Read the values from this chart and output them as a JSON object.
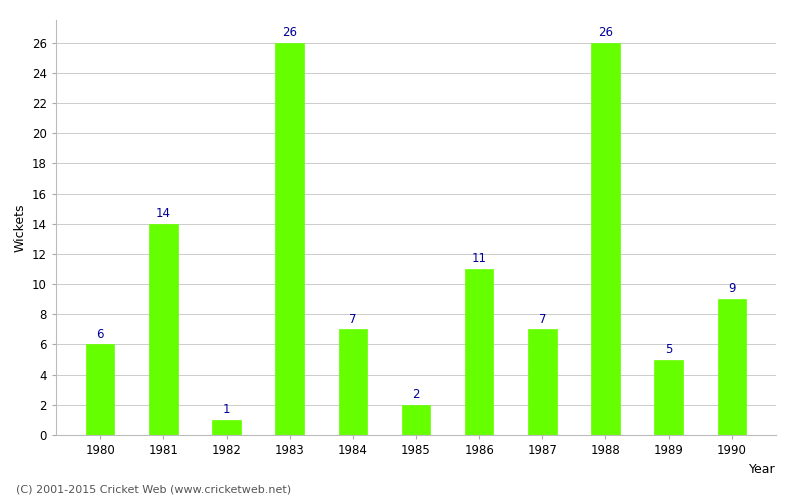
{
  "years": [
    1980,
    1981,
    1982,
    1983,
    1984,
    1985,
    1986,
    1987,
    1988,
    1989,
    1990
  ],
  "wickets": [
    6,
    14,
    1,
    26,
    7,
    2,
    11,
    7,
    26,
    5,
    9
  ],
  "bar_color": "#66ff00",
  "label_color": "#000099",
  "xlabel": "Year",
  "ylabel": "Wickets",
  "ylim": [
    0,
    27.5
  ],
  "yticks": [
    0,
    2,
    4,
    6,
    8,
    10,
    12,
    14,
    16,
    18,
    20,
    22,
    24,
    26
  ],
  "background_color": "#ffffff",
  "grid_color": "#cccccc",
  "footer": "(C) 2001-2015 Cricket Web (www.cricketweb.net)",
  "label_fontsize": 8.5,
  "axis_label_fontsize": 9,
  "tick_fontsize": 8.5,
  "footer_fontsize": 8,
  "bar_width": 0.45
}
